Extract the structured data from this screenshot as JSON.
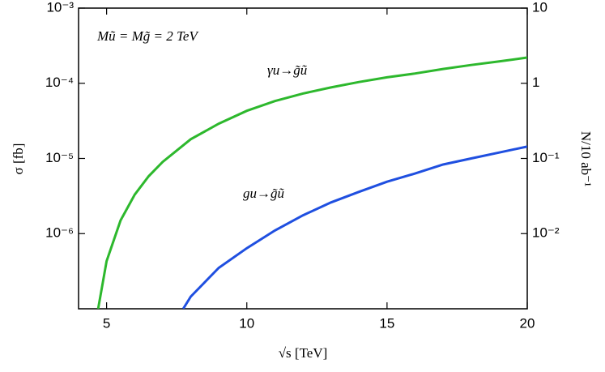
{
  "chart_data": {
    "type": "line",
    "annotations": [
      "Mũ = Mg̃ = 2 TeV"
    ],
    "xlabel": "√s  [TeV]",
    "ylabel": "σ [fb]",
    "y2label": "N/10 ab⁻¹",
    "xlim": [
      4,
      20
    ],
    "xticks": [
      5,
      10,
      15,
      20
    ],
    "ylim": [
      1e-07,
      0.001
    ],
    "yscale": "log",
    "yticks": [
      {
        "value": 0.001,
        "label": "10⁻³"
      },
      {
        "value": 0.0001,
        "label": "10⁻⁴"
      },
      {
        "value": 1e-05,
        "label": "10⁻⁵"
      },
      {
        "value": 1e-06,
        "label": "10⁻⁶"
      }
    ],
    "y2lim": [
      0.001,
      10
    ],
    "y2ticks": [
      10,
      1,
      {
        "value": 0.1,
        "label": "10⁻¹"
      },
      {
        "value": 0.01,
        "label": "10⁻²"
      }
    ],
    "series": [
      {
        "name": "γu→g̃ũ",
        "color": "#2db82d",
        "x": [
          4.7,
          5,
          5.5,
          6,
          6.5,
          7,
          8,
          9,
          10,
          11,
          12,
          13,
          14,
          15,
          16,
          17,
          18,
          19,
          20
        ],
        "values": [
          1e-07,
          4.3e-07,
          1.5e-06,
          3.3e-06,
          5.8e-06,
          9e-06,
          1.8e-05,
          2.9e-05,
          4.3e-05,
          5.8e-05,
          7.3e-05,
          8.8e-05,
          0.000104,
          0.00012,
          0.000135,
          0.000155,
          0.000175,
          0.000195,
          0.00022
        ]
      },
      {
        "name": "gu→g̃ũ",
        "color": "#1f4fe0",
        "x": [
          7.73,
          8,
          9,
          10,
          11,
          12,
          13,
          14,
          15,
          16,
          17,
          18,
          19,
          20
        ],
        "values": [
          1e-07,
          1.45e-07,
          3.5e-07,
          6.4e-07,
          1.1e-06,
          1.75e-06,
          2.6e-06,
          3.6e-06,
          4.9e-06,
          6.3e-06,
          8.3e-06,
          1e-05,
          1.2e-05,
          1.44e-05
        ]
      }
    ]
  }
}
